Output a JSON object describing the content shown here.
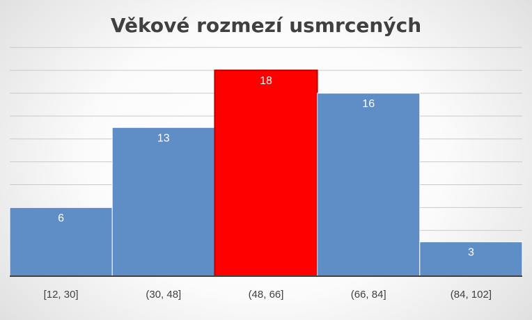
{
  "chart_data": {
    "type": "bar",
    "title": "Věkové rozmezí usmrcených",
    "xlabel": "",
    "ylabel": "",
    "categories": [
      "[12, 30]",
      "(30, 48]",
      "(48, 66]",
      "(66, 84]",
      "(84, 102]"
    ],
    "values": [
      6,
      13,
      18,
      16,
      3
    ],
    "ylim": [
      0,
      20
    ],
    "grid": true,
    "legend": "none",
    "highlight_index": 2,
    "colors": {
      "bar": "#5f8ec6",
      "highlight": "#ff0000",
      "gridline": "#c9c9c9",
      "axis": "#404040",
      "title": "#404040"
    }
  }
}
